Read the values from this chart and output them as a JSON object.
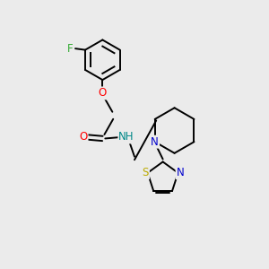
{
  "bg_color": "#ebebeb",
  "bond_color": "#000000",
  "atom_colors": {
    "O": "#ff0000",
    "N": "#0000cc",
    "F": "#33aa33",
    "S": "#bbaa00",
    "NH": "#008888",
    "C": "#000000"
  },
  "lw": 1.4,
  "fs": 8.5
}
